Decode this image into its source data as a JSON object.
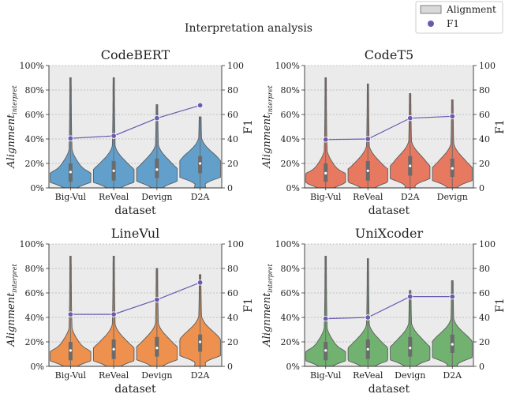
{
  "figure": {
    "title": "Interpretation analysis",
    "legend": {
      "placement": "top-right",
      "entries": [
        {
          "label": "Alignment",
          "kind": "violin",
          "color": "#d9d9d9"
        },
        {
          "label": "F1",
          "kind": "marker",
          "color": "#6a5bb0"
        }
      ]
    }
  },
  "colors": {
    "axes_bg": "#ebebeb",
    "grid": "#b3b3b3",
    "violin_edge": "#5b5b5b",
    "box": "#6b6b6b",
    "f1_line": "#6a5bb0",
    "f1_marker_edge": "#ffffff"
  },
  "chart_data": [
    {
      "type": "violin",
      "title": "CodeBERT",
      "color": "#5b9bc9",
      "categories": [
        "Big-Vul",
        "ReVeal",
        "Devign",
        "D2A"
      ],
      "xlabel": "dataset",
      "ylabel": "Alignment_interpret",
      "ylim": [
        0,
        100
      ],
      "yticks": [
        "0%",
        "20%",
        "40%",
        "60%",
        "80%",
        "100%"
      ],
      "y2label": "F1",
      "y2lim": [
        0,
        100
      ],
      "y2ticks": [
        "0",
        "20",
        "40",
        "60",
        "80",
        "100"
      ],
      "f1": [
        40.5,
        42.5,
        57.0,
        67.5
      ],
      "violins": [
        {
          "max": 90,
          "median": 13,
          "q1": 5,
          "q3": 20,
          "shape": "narrow"
        },
        {
          "max": 90,
          "median": 14,
          "q1": 6,
          "q3": 22,
          "shape": "mid"
        },
        {
          "max": 68,
          "median": 15,
          "q1": 8,
          "q3": 24,
          "shape": "mid"
        },
        {
          "max": 58,
          "median": 20,
          "q1": 12,
          "q3": 26,
          "shape": "wide"
        }
      ]
    },
    {
      "type": "violin",
      "title": "CodeT5",
      "color": "#e8735a",
      "categories": [
        "Big-Vul",
        "ReVeal",
        "D2A",
        "Devign"
      ],
      "xlabel": "dataset",
      "ylabel": "Alignment_interpret",
      "ylim": [
        0,
        100
      ],
      "yticks": [
        "0%",
        "20%",
        "40%",
        "60%",
        "80%",
        "100%"
      ],
      "y2label": "F1",
      "y2lim": [
        0,
        100
      ],
      "y2ticks": [
        "0",
        "20",
        "40",
        "60",
        "80",
        "100"
      ],
      "f1": [
        39.5,
        40.0,
        57.0,
        58.5
      ],
      "violins": [
        {
          "max": 90,
          "median": 12,
          "q1": 5,
          "q3": 20,
          "shape": "narrow"
        },
        {
          "max": 85,
          "median": 14,
          "q1": 6,
          "q3": 22,
          "shape": "mid"
        },
        {
          "max": 77,
          "median": 18,
          "q1": 10,
          "q3": 26,
          "shape": "mid"
        },
        {
          "max": 72,
          "median": 16,
          "q1": 9,
          "q3": 24,
          "shape": "mid"
        }
      ]
    },
    {
      "type": "violin",
      "title": "LineVul",
      "color": "#ee8c46",
      "categories": [
        "Big-Vul",
        "ReVeal",
        "Devign",
        "D2A"
      ],
      "xlabel": "dataset",
      "ylabel": "Alignment_interpret",
      "ylim": [
        0,
        100
      ],
      "yticks": [
        "0%",
        "20%",
        "40%",
        "60%",
        "80%",
        "100%"
      ],
      "y2label": "F1",
      "y2lim": [
        0,
        100
      ],
      "y2ticks": [
        "0",
        "20",
        "40",
        "60",
        "80",
        "100"
      ],
      "f1": [
        42.5,
        42.5,
        54.5,
        68.5
      ],
      "violins": [
        {
          "max": 90,
          "median": 13,
          "q1": 5,
          "q3": 20,
          "shape": "narrow"
        },
        {
          "max": 90,
          "median": 14,
          "q1": 6,
          "q3": 22,
          "shape": "mid"
        },
        {
          "max": 80,
          "median": 15,
          "q1": 8,
          "q3": 24,
          "shape": "mid"
        },
        {
          "max": 75,
          "median": 20,
          "q1": 12,
          "q3": 26,
          "shape": "wide"
        }
      ]
    },
    {
      "type": "violin",
      "title": "UniXcoder",
      "color": "#6aaf6a",
      "categories": [
        "Big-Vul",
        "ReVeal",
        "Devign",
        "D2A"
      ],
      "xlabel": "dataset",
      "ylabel": "Alignment_interpret",
      "ylim": [
        0,
        100
      ],
      "yticks": [
        "0%",
        "20%",
        "40%",
        "60%",
        "80%",
        "100%"
      ],
      "y2label": "F1",
      "y2lim": [
        0,
        100
      ],
      "y2ticks": [
        "0",
        "20",
        "40",
        "60",
        "80",
        "100"
      ],
      "f1": [
        39.0,
        40.0,
        57.0,
        57.0
      ],
      "violins": [
        {
          "max": 90,
          "median": 13,
          "q1": 5,
          "q3": 20,
          "shape": "narrow"
        },
        {
          "max": 88,
          "median": 14,
          "q1": 6,
          "q3": 22,
          "shape": "mid"
        },
        {
          "max": 62,
          "median": 15,
          "q1": 8,
          "q3": 24,
          "shape": "mid"
        },
        {
          "max": 70,
          "median": 18,
          "q1": 11,
          "q3": 26,
          "shape": "wide"
        }
      ]
    }
  ]
}
